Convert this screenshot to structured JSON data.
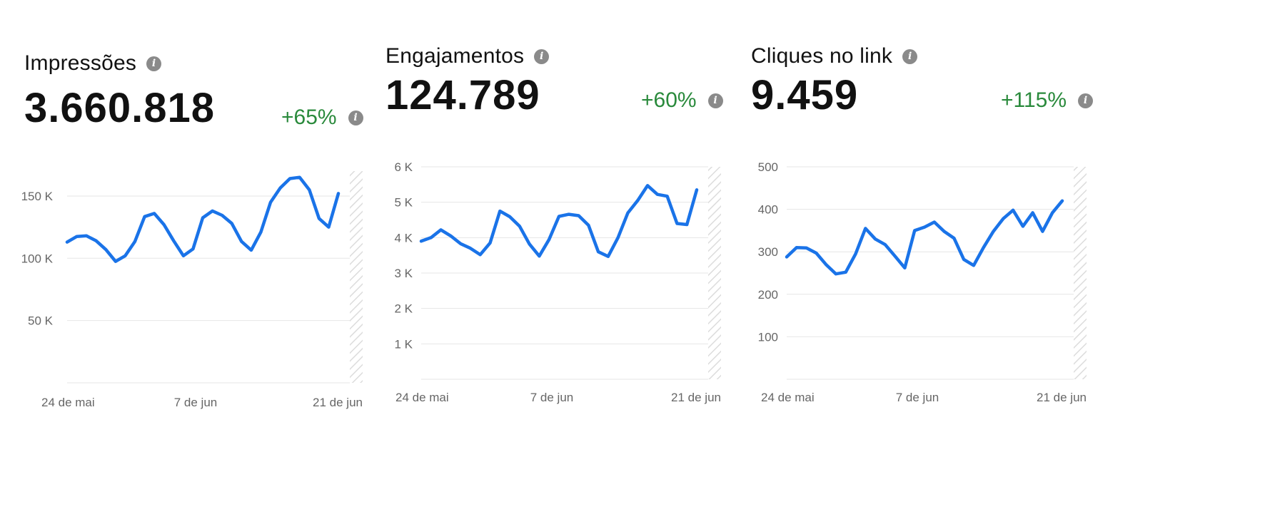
{
  "panels": [
    {
      "title": "Impressões",
      "value": "3.660.818",
      "change": "+65%"
    },
    {
      "title": "Engajamentos",
      "value": "124.789",
      "change": "+60%"
    },
    {
      "title": "Cliques no link",
      "value": "9.459",
      "change": "+115%"
    }
  ],
  "icons": {
    "info": "info-icon"
  },
  "colors": {
    "line": "#1a73e8",
    "positive": "#2a8a3c",
    "axis_text": "#666666",
    "grid": "#e6e6e6"
  },
  "chart_data": [
    {
      "type": "line",
      "title": "Impressões",
      "x_ticks": [
        "24 de mai",
        "7 de jun",
        "21 de jun"
      ],
      "y_ticks": [
        {
          "value": 50000,
          "label": "50 K"
        },
        {
          "value": 100000,
          "label": "100 K"
        },
        {
          "value": 150000,
          "label": "150 K"
        }
      ],
      "ylim": [
        0,
        170000
      ],
      "grid": true,
      "series": [
        {
          "values": [
            113000,
            117500,
            118000,
            114000,
            107000,
            97500,
            102000,
            113500,
            133500,
            136000,
            127000,
            114000,
            102000,
            107500,
            132500,
            138000,
            134500,
            128000,
            113500,
            106500,
            121000,
            145000,
            156500,
            164000,
            165000,
            155000,
            132000,
            125000,
            152000
          ]
        }
      ]
    },
    {
      "type": "line",
      "title": "Engajamentos",
      "x_ticks": [
        "24 de mai",
        "7 de jun",
        "21 de jun"
      ],
      "y_ticks": [
        {
          "value": 1000,
          "label": "1 K"
        },
        {
          "value": 2000,
          "label": "2 K"
        },
        {
          "value": 3000,
          "label": "3 K"
        },
        {
          "value": 4000,
          "label": "4 K"
        },
        {
          "value": 5000,
          "label": "5 K"
        },
        {
          "value": 6000,
          "label": "6 K"
        }
      ],
      "ylim": [
        0,
        6000
      ],
      "grid": true,
      "series": [
        {
          "values": [
            3900,
            4000,
            4220,
            4050,
            3830,
            3700,
            3520,
            3850,
            4750,
            4590,
            4320,
            3820,
            3480,
            3950,
            4600,
            4660,
            4620,
            4350,
            3600,
            3470,
            4000,
            4700,
            5050,
            5470,
            5220,
            5170,
            4400,
            4370,
            5350
          ]
        }
      ]
    },
    {
      "type": "line",
      "title": "Cliques no link",
      "x_ticks": [
        "24 de mai",
        "7 de jun",
        "21 de jun"
      ],
      "y_ticks": [
        {
          "value": 100,
          "label": "100"
        },
        {
          "value": 200,
          "label": "200"
        },
        {
          "value": 300,
          "label": "300"
        },
        {
          "value": 400,
          "label": "400"
        },
        {
          "value": 500,
          "label": "500"
        }
      ],
      "ylim": [
        0,
        500
      ],
      "grid": true,
      "series": [
        {
          "values": [
            288,
            310,
            309,
            297,
            270,
            248,
            252,
            295,
            355,
            330,
            317,
            290,
            262,
            350,
            358,
            370,
            348,
            332,
            282,
            268,
            310,
            348,
            378,
            398,
            360,
            392,
            348,
            392,
            420
          ]
        }
      ]
    }
  ]
}
